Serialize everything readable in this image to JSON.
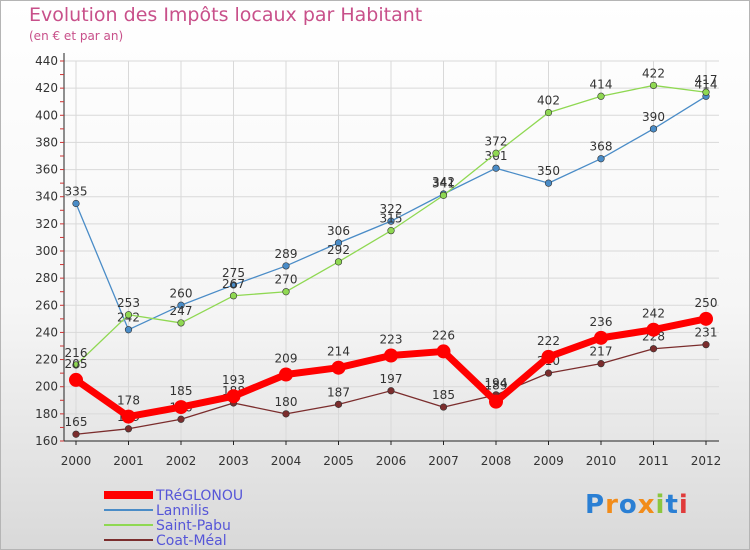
{
  "chart_data": {
    "type": "line",
    "title": "Evolution des Impôts locaux par Habitant",
    "subtitle": "(en € et par an)",
    "xlabel": "",
    "ylabel": "",
    "ylim": [
      160,
      440
    ],
    "yticks": [
      160,
      180,
      200,
      220,
      240,
      260,
      280,
      300,
      320,
      340,
      360,
      380,
      400,
      420,
      440
    ],
    "categories": [
      "2000",
      "2001",
      "2002",
      "2003",
      "2004",
      "2005",
      "2006",
      "2007",
      "2008",
      "2009",
      "2010",
      "2011",
      "2012"
    ],
    "series": [
      {
        "name": "TRéGLONOU",
        "color": "#ff0000",
        "values": [
          205,
          178,
          185,
          193,
          209,
          214,
          223,
          226,
          189,
          222,
          236,
          242,
          250
        ]
      },
      {
        "name": "Lannilis",
        "color": "#4a8cc7",
        "values": [
          335,
          242,
          260,
          275,
          289,
          306,
          322,
          342,
          361,
          350,
          368,
          390,
          414
        ]
      },
      {
        "name": "Saint-Pabu",
        "color": "#8fd852",
        "values": [
          216,
          253,
          247,
          267,
          270,
          292,
          315,
          341,
          372,
          402,
          414,
          422,
          417
        ]
      },
      {
        "name": "Coat-Méal",
        "color": "#7b2d2d",
        "values": [
          165,
          169,
          176,
          188,
          180,
          187,
          197,
          185,
          194,
          210,
          217,
          228,
          231
        ]
      }
    ],
    "legend_position": "bottom-left"
  },
  "logo": {
    "text": "Proxiti",
    "letters": [
      "P",
      "r",
      "o",
      "x",
      "i",
      "t",
      "i"
    ],
    "colors": [
      "#2a7fd4",
      "#f28c1a",
      "#2a7fd4",
      "#f28c1a",
      "#8bc63e",
      "#2a7fd4",
      "#e03b3b"
    ]
  }
}
